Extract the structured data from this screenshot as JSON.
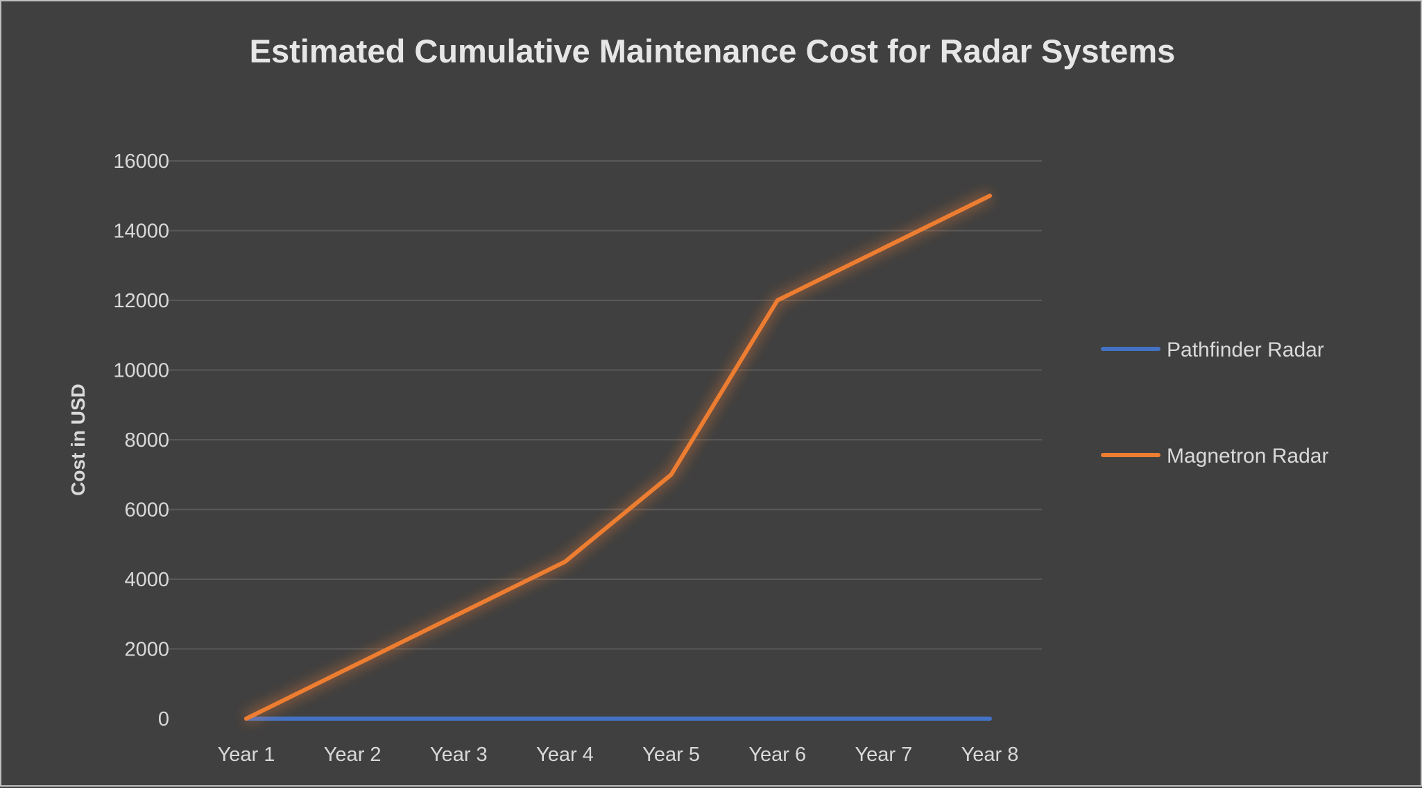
{
  "chart_data": {
    "type": "line",
    "title": "Estimated Cumulative Maintenance Cost for Radar Systems",
    "xlabel": "",
    "ylabel": "Cost in USD",
    "categories": [
      "Year 1",
      "Year 2",
      "Year 3",
      "Year 4",
      "Year 5",
      "Year 6",
      "Year 7",
      "Year 8"
    ],
    "ylim": [
      0,
      16000
    ],
    "yticks": [
      0,
      2000,
      4000,
      6000,
      8000,
      10000,
      12000,
      14000,
      16000
    ],
    "grid": true,
    "legend_position": "right",
    "series": [
      {
        "name": "Pathfinder Radar",
        "color": "#4472c4",
        "values": [
          0,
          0,
          0,
          0,
          0,
          0,
          0,
          0
        ]
      },
      {
        "name": "Magnetron Radar",
        "color": "#ed7d31",
        "values": [
          0,
          1500,
          3000,
          4500,
          7000,
          12000,
          13500,
          15000
        ]
      }
    ]
  },
  "colors": {
    "background": "#404040",
    "grid": "#595959",
    "text": "#d9d9d9"
  }
}
